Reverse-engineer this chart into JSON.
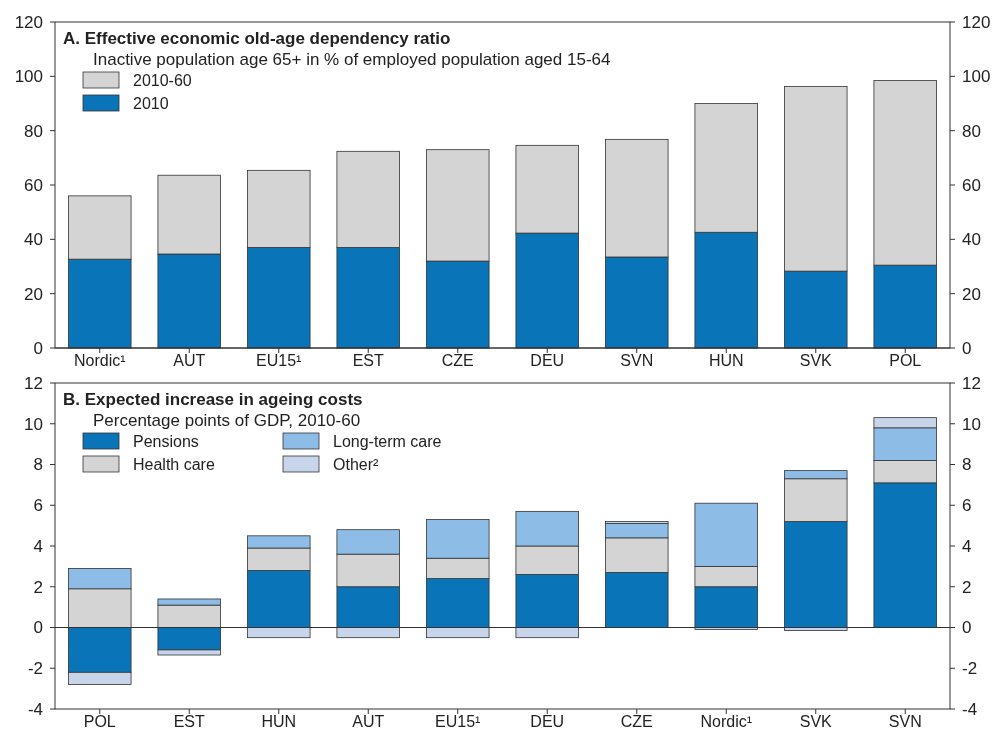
{
  "chart_data": [
    {
      "type": "bar",
      "title": "A. Effective economic old-age dependency ratio",
      "subtitle": "Inactive population age 65+ in % of employed population aged 15-64",
      "stacked": true,
      "legend": "top left",
      "categories": [
        "Nordic¹",
        "AUT",
        "EU15¹",
        "EST",
        "CZE",
        "DEU",
        "SVN",
        "HUN",
        "SVK",
        "POL"
      ],
      "series": [
        {
          "name": "2010",
          "color": "#0a74b9",
          "values": [
            32.7,
            34.6,
            37,
            37,
            32,
            42.3,
            33.5,
            42.6,
            28.3,
            30.5
          ]
        },
        {
          "name": "2010-60",
          "color": "#d4d4d4",
          "values": [
            23.3,
            29,
            28.4,
            35.4,
            41,
            32.3,
            43.3,
            47.4,
            68,
            68
          ]
        }
      ],
      "ylim": [
        0,
        120
      ],
      "yticks": [
        0,
        20,
        40,
        60,
        80,
        100,
        120
      ],
      "y2lim": [
        0,
        120
      ],
      "y2ticks": [
        0,
        20,
        40,
        60,
        80,
        100,
        120
      ]
    },
    {
      "type": "bar",
      "title": "B. Expected increase in ageing costs",
      "subtitle": "Percentage points of GDP, 2010-60",
      "stacked": true,
      "legend": "top left",
      "categories": [
        "POL",
        "EST",
        "HUN",
        "AUT",
        "EU15¹",
        "DEU",
        "CZE",
        "Nordic¹",
        "SVK",
        "SVN"
      ],
      "series": [
        {
          "name": "Pensions",
          "color": "#0a74b9",
          "values": [
            -2.2,
            -1.1,
            2.8,
            2.0,
            2.4,
            2.6,
            2.7,
            2.0,
            5.2,
            7.1
          ]
        },
        {
          "name": "Health care",
          "color": "#d4d4d4",
          "values": [
            1.9,
            1.1,
            1.1,
            1.6,
            1.0,
            1.4,
            1.7,
            1.0,
            2.1,
            1.1
          ]
        },
        {
          "name": "Long-term care",
          "color": "#8dbce6",
          "values": [
            1.0,
            0.3,
            0.6,
            1.2,
            1.9,
            1.7,
            0.7,
            3.1,
            0.4,
            1.6
          ]
        },
        {
          "name": "Other²",
          "color": "#c8d4ea",
          "values": [
            -0.6,
            -0.25,
            -0.5,
            -0.5,
            -0.5,
            -0.5,
            0.1,
            -0.1,
            -0.15,
            0.5
          ]
        }
      ],
      "ylim": [
        -4,
        12
      ],
      "yticks": [
        -4,
        -2,
        0,
        2,
        4,
        6,
        8,
        10,
        12
      ],
      "y2lim": [
        -4,
        12
      ],
      "y2ticks": [
        -4,
        -2,
        0,
        2,
        4,
        6,
        8,
        10,
        12
      ]
    }
  ]
}
